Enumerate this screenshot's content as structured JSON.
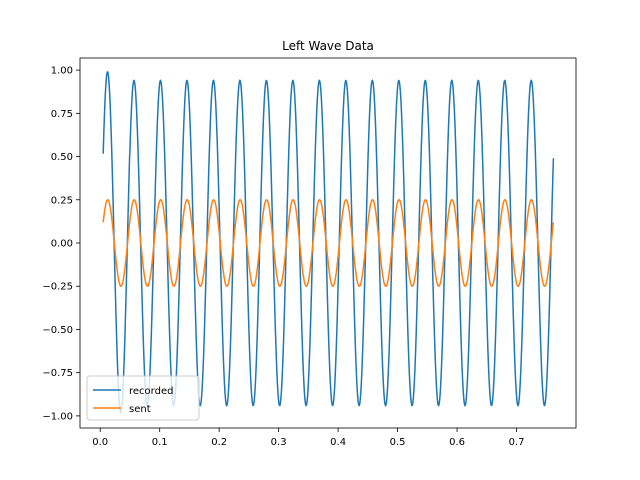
{
  "chart_data": {
    "type": "line",
    "title": "Left Wave Data",
    "xlabel": "",
    "ylabel": "",
    "xlim": [
      -0.034,
      0.8
    ],
    "ylim": [
      -1.07,
      1.07
    ],
    "xticks": [
      0.0,
      0.1,
      0.2,
      0.3,
      0.4,
      0.5,
      0.6,
      0.7
    ],
    "xtick_labels": [
      "0.0",
      "0.1",
      "0.2",
      "0.3",
      "0.4",
      "0.5",
      "0.6",
      "0.7"
    ],
    "yticks": [
      -1.0,
      -0.75,
      -0.5,
      -0.25,
      0.0,
      0.25,
      0.5,
      0.75,
      1.0
    ],
    "ytick_labels": [
      "−1.00",
      "−0.75",
      "−0.50",
      "−0.25",
      "0.00",
      "0.25",
      "0.50",
      "0.75",
      "1.00"
    ],
    "grid": false,
    "legend": "lower-left",
    "x_range": [
      0.005,
      0.762
    ],
    "cycles": 17,
    "series": [
      {
        "name": "recorded",
        "color": "#1f77b4",
        "amplitude": 0.94,
        "start_value": 0.49,
        "first_peak": 0.99,
        "first_trough": -0.98
      },
      {
        "name": "sent",
        "color": "#ff7f0e",
        "amplitude": 0.25,
        "start_value": 0.12,
        "first_peak": 0.25,
        "first_trough": -0.25
      }
    ]
  }
}
